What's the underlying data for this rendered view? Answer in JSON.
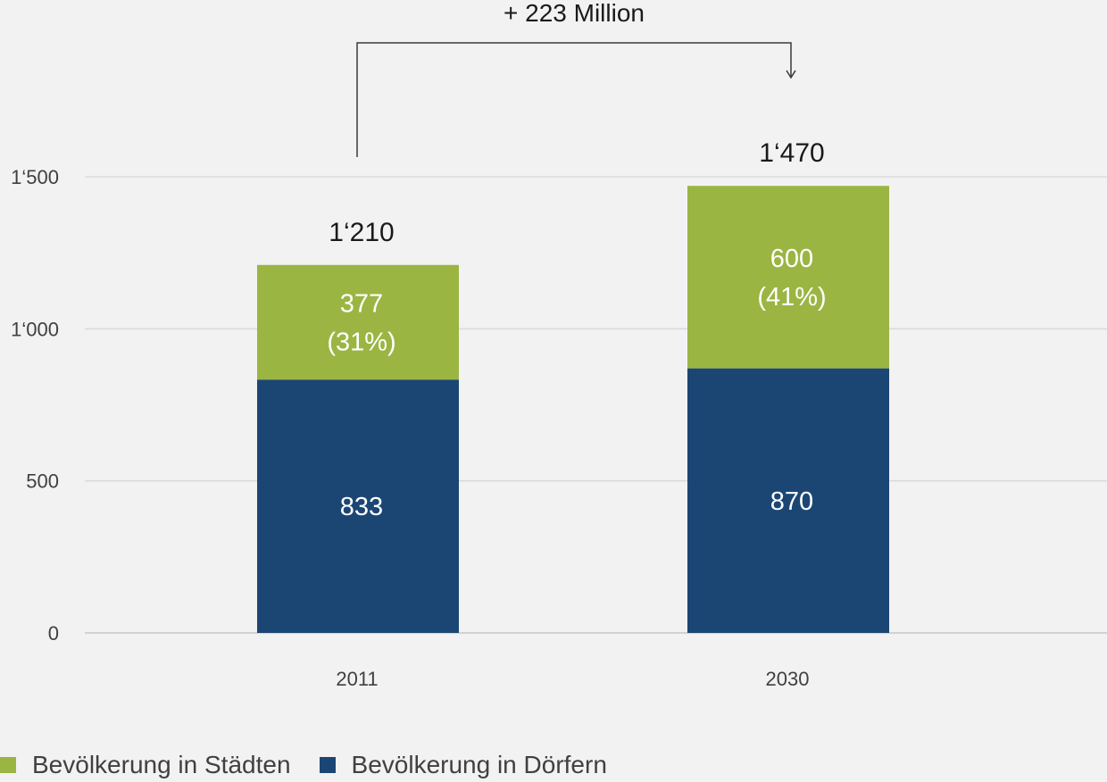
{
  "chart_data": {
    "type": "bar",
    "stacked": true,
    "categories": [
      "2011",
      "2030"
    ],
    "series": [
      {
        "name": "Bevölkerung in Dörfern",
        "color": "#1b4674",
        "values": [
          833,
          870
        ],
        "labels": [
          "833",
          "870"
        ]
      },
      {
        "name": "Bevölkerung in Städten",
        "color": "#9bb543",
        "values": [
          377,
          600
        ],
        "labels": [
          "377\n(31%)",
          "600\n(41%)"
        ]
      }
    ],
    "totals": [
      "1‘210",
      "1‘470"
    ],
    "y_ticks": [
      {
        "value": 0,
        "label": "0"
      },
      {
        "value": 500,
        "label": "500"
      },
      {
        "value": 1000,
        "label": "1‘000"
      },
      {
        "value": 1500,
        "label": "1‘500"
      }
    ],
    "ylim": [
      0,
      1500
    ],
    "grid": true,
    "annotation": "+ 223 Million",
    "legend_position": "bottom-left"
  },
  "legend": [
    {
      "label": "Bevölkerung in Städten",
      "color": "#9bb543"
    },
    {
      "label": "Bevölkerung in Dörfern",
      "color": "#1b4674"
    }
  ]
}
